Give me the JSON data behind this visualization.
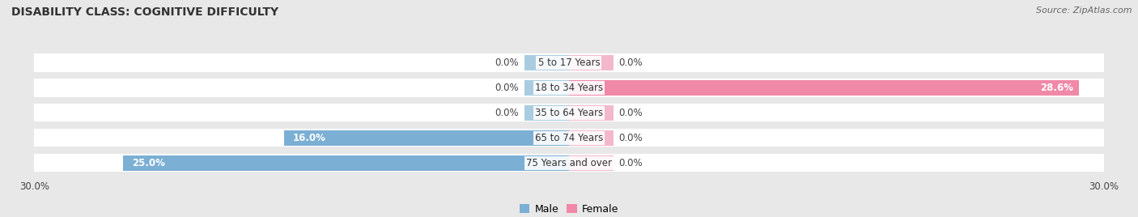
{
  "title": "DISABILITY CLASS: COGNITIVE DIFFICULTY",
  "source": "Source: ZipAtlas.com",
  "categories": [
    "5 to 17 Years",
    "18 to 34 Years",
    "35 to 64 Years",
    "65 to 74 Years",
    "75 Years and over"
  ],
  "male_values": [
    0.0,
    0.0,
    0.0,
    16.0,
    25.0
  ],
  "female_values": [
    0.0,
    28.6,
    0.0,
    0.0,
    0.0
  ],
  "male_color": "#7bafd4",
  "female_color": "#f088a8",
  "male_color_small": "#aacce0",
  "female_color_small": "#f4b8cc",
  "x_max": 30.0,
  "bg_color": "#e8e8e8",
  "bar_bg_color": "#ffffff",
  "title_fontsize": 10,
  "source_fontsize": 8,
  "label_fontsize": 8.5,
  "tick_fontsize": 8.5,
  "small_bar_width": 2.5
}
